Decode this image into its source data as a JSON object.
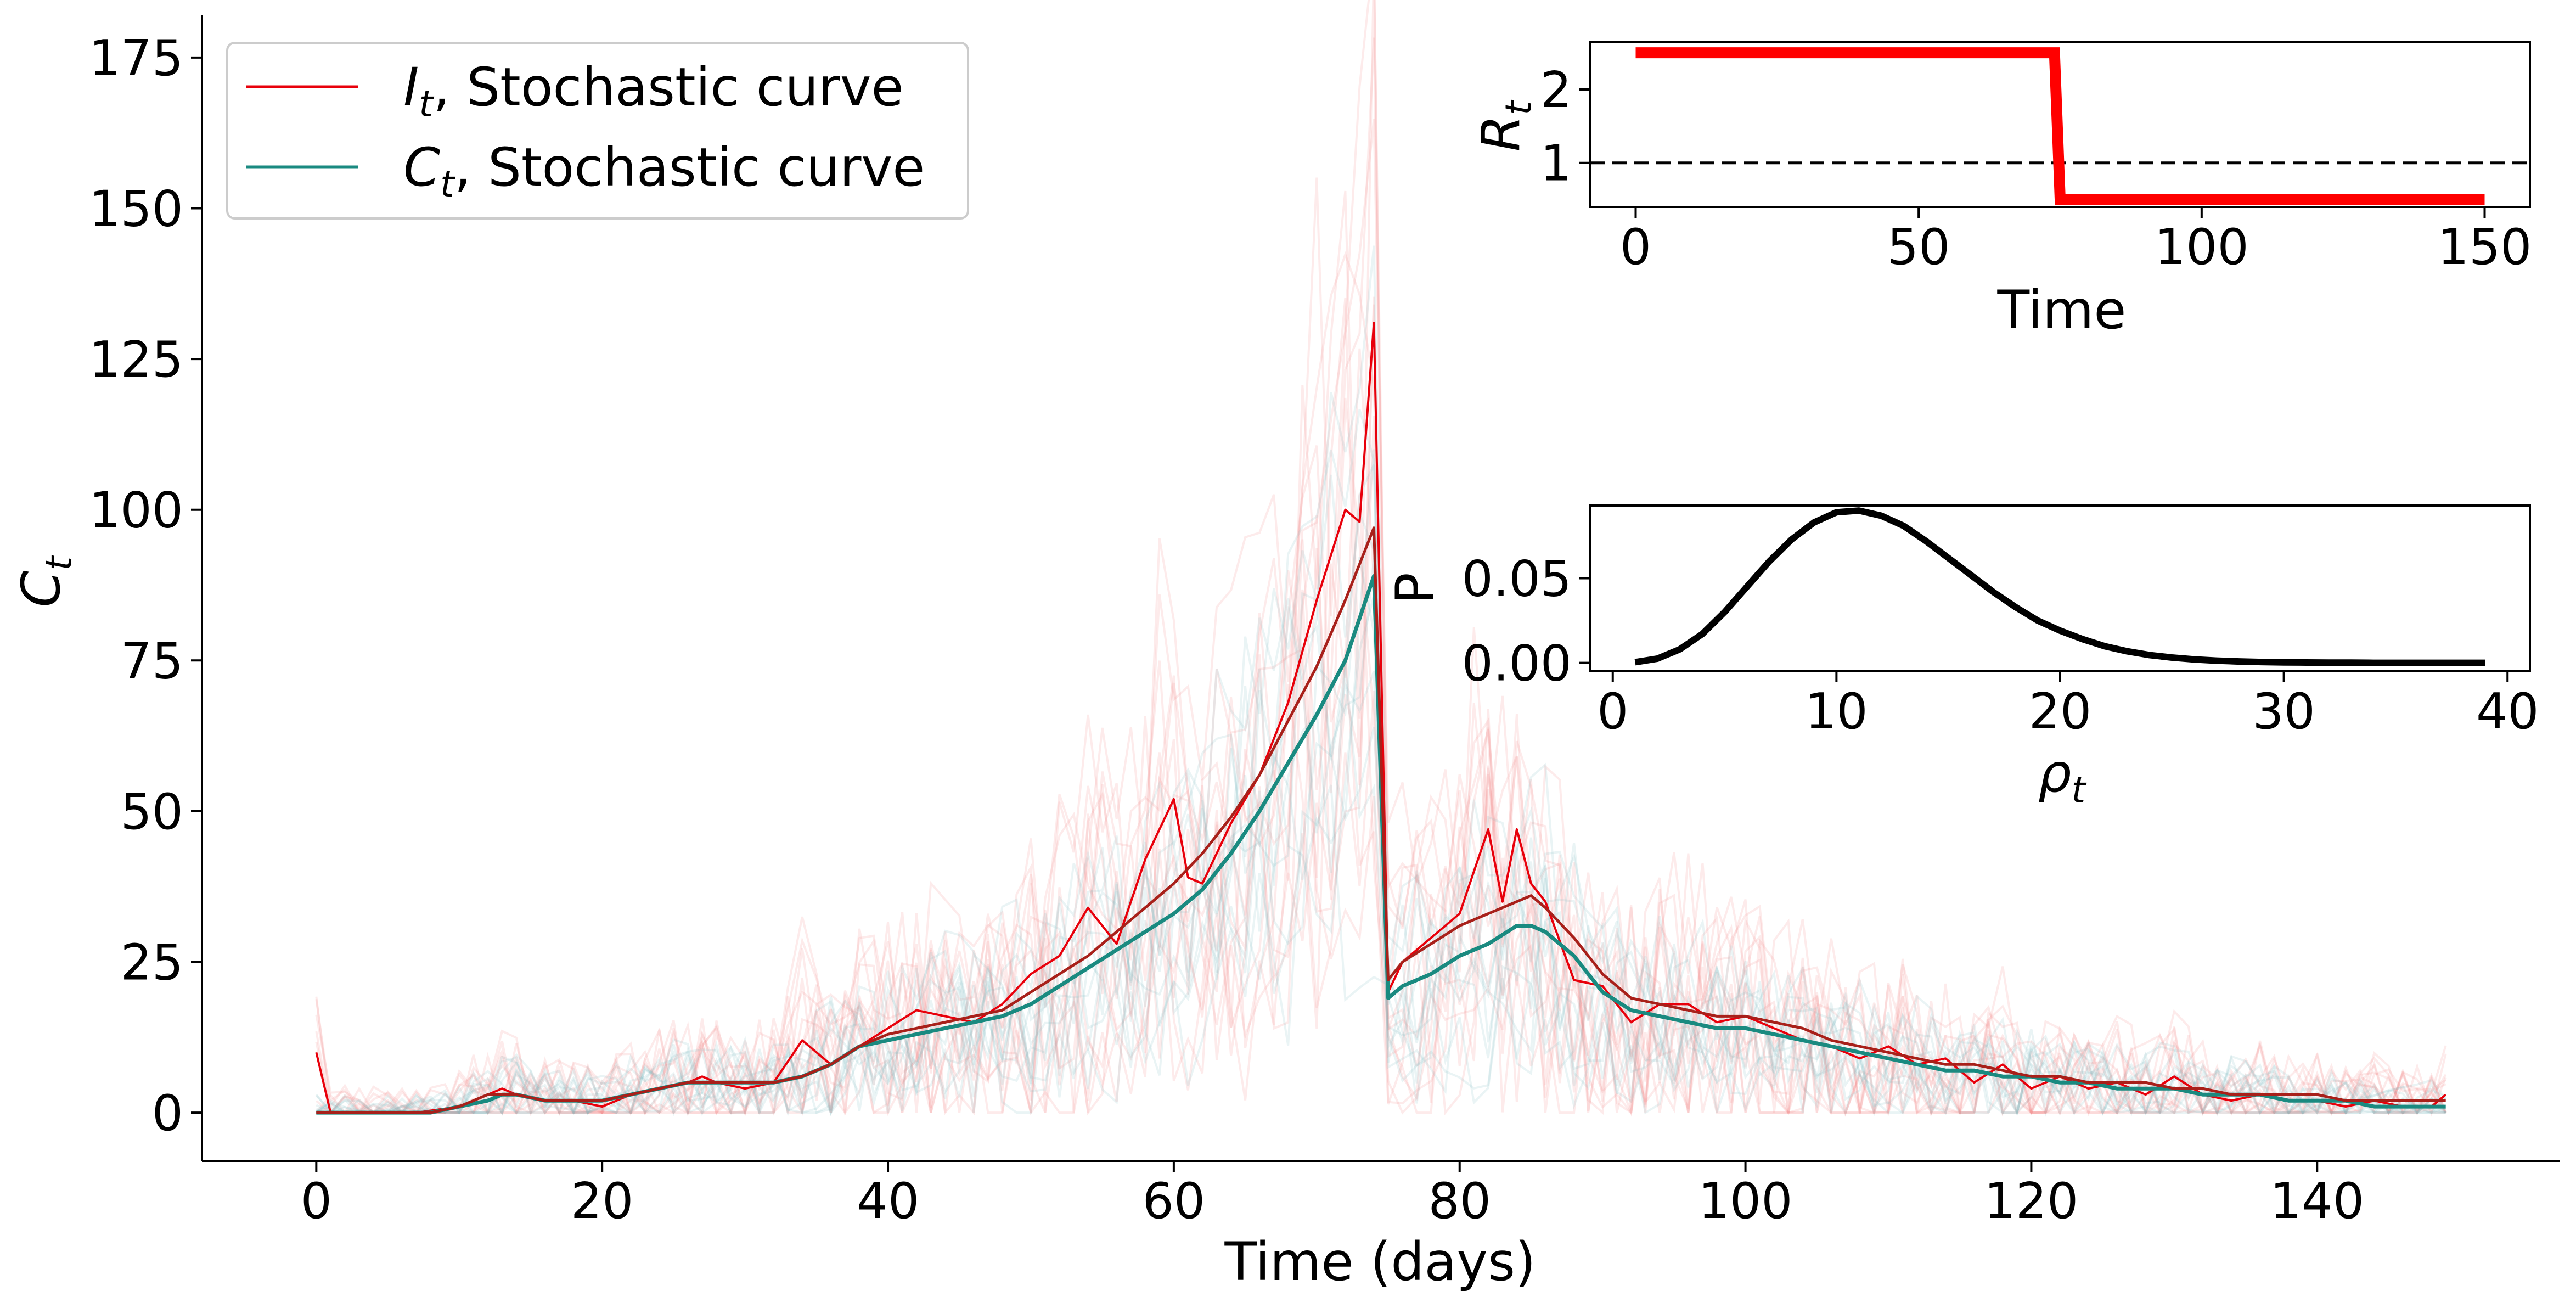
{
  "main": {
    "type": "line",
    "xlabel": "Time (days)",
    "ylabel": "C",
    "ylabel_sub": "t",
    "xlim": [
      -8,
      157
    ],
    "ylim": [
      -8,
      182
    ],
    "xticks": [
      0,
      20,
      40,
      60,
      80,
      100,
      120,
      140
    ],
    "yticks": [
      0,
      25,
      50,
      75,
      100,
      125,
      150,
      175
    ],
    "legend": [
      {
        "sym": "I",
        "sub": "t",
        "text": ", Stochastic curve",
        "color": "#e8000b"
      },
      {
        "sym": "C",
        "sub": "t",
        "text": ", Stochastic curve",
        "color": "#1a8a80"
      }
    ]
  },
  "inset_rt": {
    "type": "line",
    "xlabel": "Time",
    "ylabel": "R",
    "ylabel_sub": "t",
    "xlim": [
      -8,
      158
    ],
    "ylim": [
      0.4,
      2.65
    ],
    "xticks": [
      0,
      50,
      100,
      150
    ],
    "yticks": [
      1,
      2
    ],
    "reference": 1
  },
  "inset_rho": {
    "type": "line",
    "xlabel": "ρ",
    "xlabel_sub": "t",
    "ylabel": "P",
    "xlim": [
      -1,
      41
    ],
    "ylim": [
      -0.005,
      0.093
    ],
    "xticks": [
      0,
      10,
      20,
      30,
      40
    ],
    "yticks": [
      "0.00",
      "0.05"
    ]
  },
  "chart_data": [
    {
      "type": "line",
      "xlabel": "Time (days)",
      "ylabel": "C_t",
      "xlim": [
        -8,
        157
      ],
      "ylim": [
        -8,
        182
      ],
      "series": [
        {
          "name": "I_t, Stochastic curve",
          "color": "#e8000b",
          "x": [
            0,
            1,
            4,
            7,
            10,
            12,
            13,
            14,
            16,
            18,
            20,
            22,
            24,
            26,
            27,
            28,
            30,
            32,
            34,
            36,
            38,
            40,
            42,
            44,
            46,
            48,
            50,
            52,
            54,
            56,
            58,
            60,
            61,
            62,
            64,
            66,
            68,
            70,
            72,
            73,
            74,
            75,
            76,
            78,
            80,
            82,
            83,
            84,
            85,
            86,
            88,
            90,
            92,
            94,
            96,
            98,
            100,
            102,
            104,
            106,
            108,
            110,
            112,
            114,
            116,
            118,
            120,
            122,
            124,
            126,
            128,
            130,
            132,
            134,
            136,
            138,
            140,
            142,
            144,
            146,
            148,
            149
          ],
          "y": [
            10,
            0,
            0,
            0,
            1,
            3,
            4,
            3,
            2,
            2,
            1,
            3,
            4,
            5,
            6,
            5,
            4,
            5,
            12,
            8,
            11,
            14,
            17,
            16,
            15,
            18,
            23,
            26,
            34,
            28,
            42,
            52,
            39,
            38,
            48,
            56,
            68,
            85,
            100,
            98,
            131,
            20,
            25,
            29,
            33,
            47,
            35,
            47,
            38,
            35,
            22,
            21,
            15,
            18,
            18,
            15,
            16,
            14,
            12,
            11,
            9,
            11,
            8,
            9,
            5,
            8,
            4,
            6,
            4,
            5,
            3,
            6,
            3,
            2,
            3,
            2,
            2,
            1,
            2,
            1,
            1,
            3
          ]
        },
        {
          "name": "C_t, Stochastic curve",
          "color": "#1a8a80",
          "x": [
            0,
            2,
            4,
            6,
            8,
            10,
            12,
            13,
            14,
            16,
            18,
            20,
            22,
            24,
            26,
            28,
            30,
            32,
            34,
            36,
            38,
            40,
            42,
            44,
            46,
            48,
            50,
            52,
            54,
            56,
            58,
            60,
            62,
            64,
            66,
            68,
            70,
            72,
            74,
            75,
            76,
            78,
            80,
            82,
            84,
            85,
            86,
            88,
            90,
            92,
            94,
            96,
            98,
            100,
            102,
            104,
            106,
            108,
            110,
            112,
            114,
            116,
            118,
            120,
            122,
            124,
            126,
            128,
            130,
            132,
            134,
            136,
            138,
            140,
            142,
            144,
            146,
            148,
            149
          ],
          "y": [
            0,
            0,
            0,
            0,
            0,
            1,
            2,
            3,
            3,
            2,
            2,
            2,
            3,
            4,
            5,
            5,
            5,
            5,
            6,
            8,
            11,
            12,
            13,
            14,
            15,
            16,
            18,
            21,
            24,
            27,
            30,
            33,
            37,
            43,
            50,
            58,
            66,
            75,
            89,
            19,
            21,
            23,
            26,
            28,
            31,
            31,
            30,
            26,
            20,
            17,
            16,
            15,
            14,
            14,
            13,
            12,
            11,
            10,
            9,
            8,
            7,
            7,
            6,
            6,
            5,
            5,
            4,
            4,
            4,
            3,
            3,
            3,
            2,
            2,
            2,
            1,
            1,
            1,
            1
          ]
        },
        {
          "name": "",
          "color": "#a8201a",
          "x": [
            0,
            2,
            4,
            6,
            8,
            10,
            12,
            14,
            16,
            18,
            20,
            22,
            24,
            26,
            28,
            30,
            32,
            34,
            36,
            38,
            40,
            42,
            44,
            46,
            48,
            50,
            52,
            54,
            56,
            58,
            60,
            62,
            64,
            66,
            68,
            70,
            72,
            74,
            75,
            76,
            78,
            80,
            82,
            84,
            85,
            86,
            88,
            90,
            92,
            94,
            96,
            98,
            100,
            102,
            104,
            106,
            108,
            110,
            112,
            114,
            116,
            118,
            120,
            122,
            124,
            126,
            128,
            130,
            132,
            134,
            136,
            138,
            140,
            142,
            144,
            146,
            148,
            149
          ],
          "y": [
            0,
            0,
            0,
            0,
            0,
            1,
            3,
            3,
            2,
            2,
            2,
            3,
            4,
            5,
            5,
            5,
            5,
            6,
            8,
            11,
            13,
            14,
            15,
            16,
            17,
            20,
            23,
            26,
            30,
            34,
            38,
            43,
            49,
            56,
            65,
            74,
            85,
            97,
            22,
            25,
            28,
            31,
            33,
            35,
            36,
            34,
            29,
            23,
            19,
            18,
            17,
            16,
            16,
            15,
            14,
            12,
            11,
            10,
            9,
            8,
            8,
            7,
            6,
            6,
            5,
            5,
            5,
            4,
            4,
            3,
            3,
            3,
            3,
            2,
            2,
            2,
            2,
            2
          ]
        }
      ]
    },
    {
      "type": "line",
      "xlabel": "Time",
      "ylabel": "R_t",
      "xlim": [
        -8,
        158
      ],
      "ylim": [
        0.4,
        2.65
      ],
      "series": [
        {
          "name": "",
          "color": "#ff0000",
          "x": [
            0,
            74,
            75,
            150
          ],
          "y": [
            2.5,
            2.5,
            0.5,
            0.5
          ]
        },
        {
          "name": "",
          "color": "#000000",
          "x": [
            -8,
            158
          ],
          "y": [
            1,
            1
          ]
        }
      ]
    },
    {
      "type": "line",
      "xlabel": "ρ_t",
      "ylabel": "P",
      "xlim": [
        -1,
        41
      ],
      "ylim": [
        -0.005,
        0.093
      ],
      "series": [
        {
          "name": "",
          "color": "#000000",
          "x": [
            1,
            2,
            3,
            4,
            5,
            6,
            7,
            8,
            9,
            10,
            11,
            12,
            13,
            14,
            15,
            16,
            17,
            18,
            19,
            20,
            21,
            22,
            23,
            24,
            25,
            26,
            27,
            28,
            29,
            30,
            31,
            32,
            33,
            34,
            35,
            36,
            37,
            38,
            39
          ],
          "y": [
            0.0004,
            0.0025,
            0.008,
            0.017,
            0.03,
            0.045,
            0.06,
            0.073,
            0.083,
            0.089,
            0.09,
            0.087,
            0.081,
            0.072,
            0.062,
            0.052,
            0.042,
            0.033,
            0.025,
            0.019,
            0.014,
            0.0098,
            0.0068,
            0.0046,
            0.0031,
            0.002,
            0.0013,
            0.0008,
            0.0005,
            0.0003,
            0.0002,
            0.0001,
            0.0001,
            0.0,
            0.0,
            0.0,
            0.0,
            0.0,
            0.0
          ]
        }
      ]
    }
  ]
}
